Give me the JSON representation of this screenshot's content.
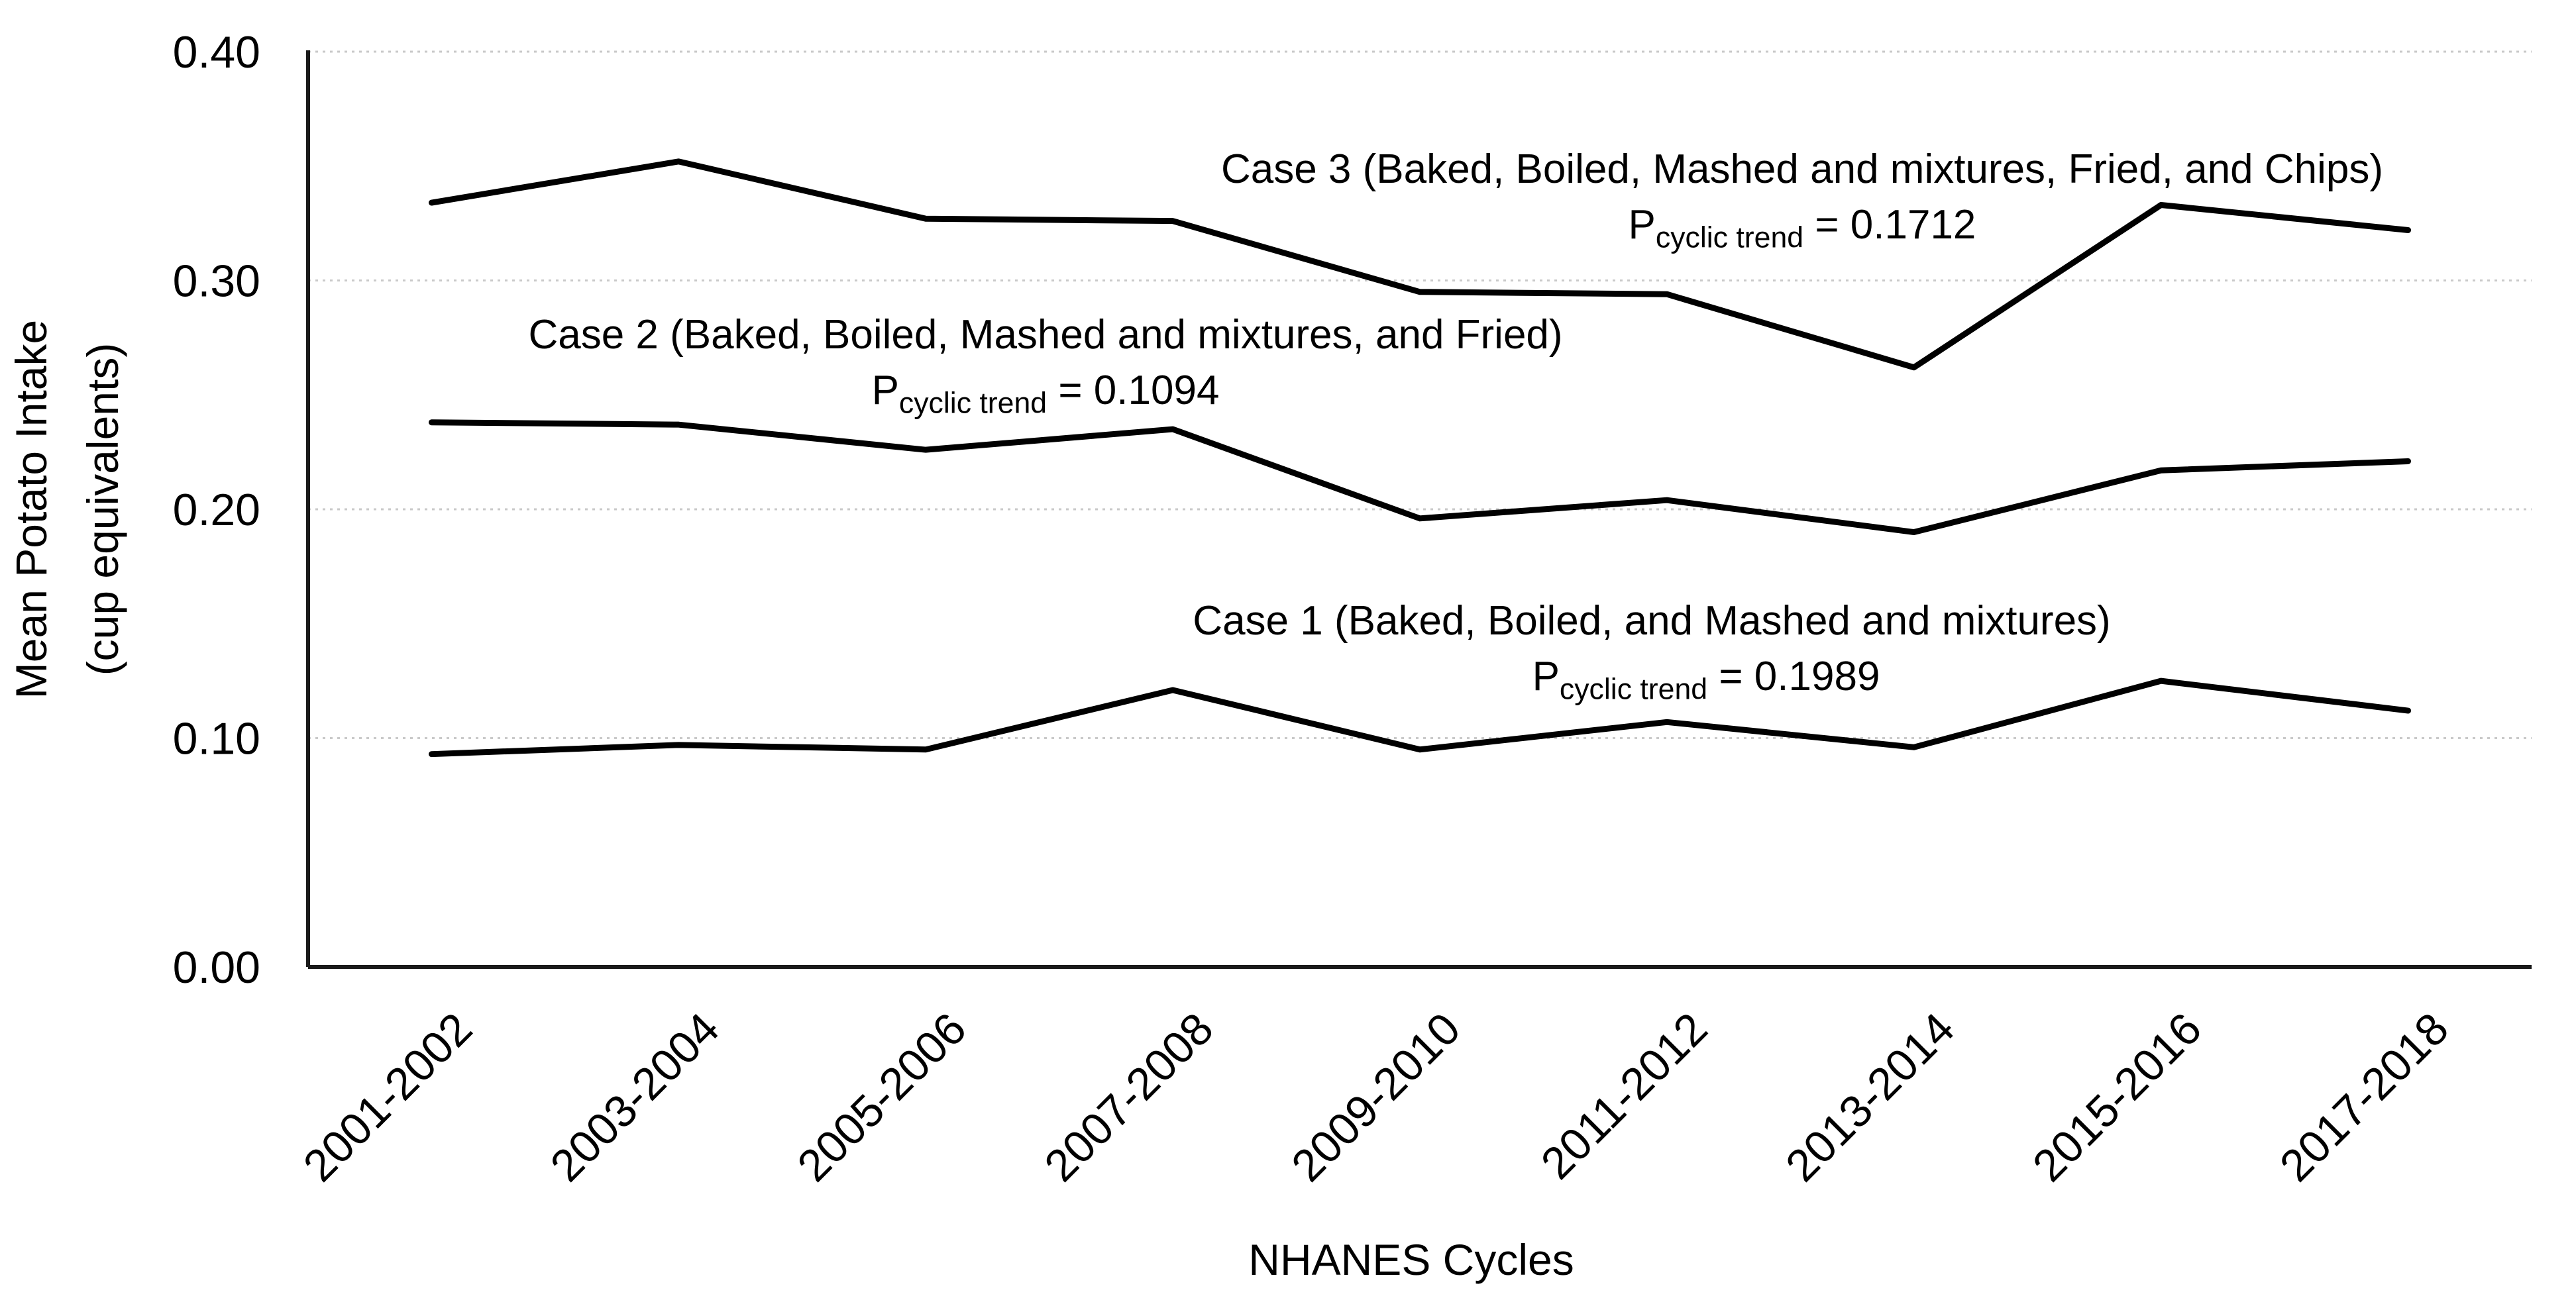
{
  "chart_data": {
    "type": "line",
    "title": "",
    "xlabel": "NHANES Cycles",
    "ylabel_line1": "Mean Potato Intake",
    "ylabel_line2": "(cup equivalents)",
    "categories": [
      "2001-2002",
      "2003-2004",
      "2005-2006",
      "2007-2008",
      "2009-2010",
      "2011-2012",
      "2013-2014",
      "2015-2016",
      "2017-2018"
    ],
    "y_ticks": [
      "0.00",
      "0.10",
      "0.20",
      "0.30",
      "0.40"
    ],
    "ylim": [
      0,
      0.4
    ],
    "grid": true,
    "legend_position": "annotations-inline",
    "line_color": "#000000",
    "grid_color": "#c9c9c9",
    "axis_color": "#1a1a1a",
    "series": [
      {
        "name": "Case 1 (Baked, Boiled, and Mashed and mixtures)",
        "p_prefix": "P",
        "p_sub": "cyclic trend",
        "p_eq_value": "= 0.1989",
        "values": [
          0.093,
          0.097,
          0.095,
          0.121,
          0.095,
          0.107,
          0.096,
          0.125,
          0.112
        ]
      },
      {
        "name": "Case 2 (Baked, Boiled, Mashed and mixtures, and Fried)",
        "p_prefix": "P",
        "p_sub": "cyclic trend",
        "p_eq_value": "= 0.1094",
        "values": [
          0.238,
          0.237,
          0.226,
          0.235,
          0.196,
          0.204,
          0.19,
          0.217,
          0.221
        ]
      },
      {
        "name": "Case 3 (Baked, Boiled, Mashed and mixtures, Fried, and Chips)",
        "p_prefix": "P",
        "p_sub": "cyclic trend",
        "p_eq_value": "= 0.1712",
        "values": [
          0.334,
          0.352,
          0.327,
          0.326,
          0.295,
          0.294,
          0.262,
          0.333,
          0.322
        ]
      }
    ]
  }
}
